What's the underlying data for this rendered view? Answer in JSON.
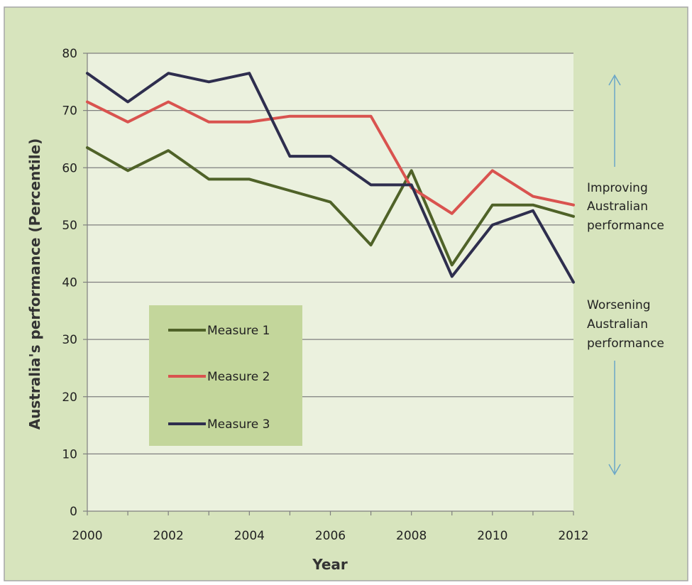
{
  "chart_data": {
    "type": "line",
    "title": "",
    "xlabel": "Year",
    "ylabel": "Australia's performance (Percentile)",
    "x": [
      2000,
      2001,
      2002,
      2003,
      2004,
      2005,
      2006,
      2007,
      2008,
      2009,
      2010,
      2011,
      2012
    ],
    "x_tick_labels": [
      "2000",
      "2002",
      "2004",
      "2006",
      "2008",
      "2010",
      "2012"
    ],
    "y_tick_labels": [
      "0",
      "10",
      "20",
      "30",
      "40",
      "50",
      "60",
      "70",
      "80"
    ],
    "xlim": [
      2000,
      2012
    ],
    "ylim": [
      0,
      80
    ],
    "grid": "horizontal",
    "legend_position": "bottom-left inside plot",
    "series": [
      {
        "name": "Measure 1",
        "color": "#4f6228",
        "values": [
          63.5,
          59.5,
          63,
          58,
          58,
          56,
          54,
          46.5,
          59.5,
          43,
          53.5,
          53.5,
          51.5
        ]
      },
      {
        "name": "Measure 2",
        "color": "#d9534f",
        "values": [
          71.5,
          68,
          71.5,
          68,
          68,
          69,
          69,
          69,
          56.5,
          52,
          59.5,
          55,
          53.5
        ]
      },
      {
        "name": "Measure 3",
        "color": "#2e2e4e",
        "values": [
          76.5,
          71.5,
          76.5,
          75,
          76.5,
          62,
          62,
          57,
          57,
          41,
          50,
          52.5,
          40
        ]
      }
    ],
    "annotations": {
      "up_text": [
        "Improving",
        "Australian",
        "performance"
      ],
      "down_text": [
        "Worsening",
        "Australian",
        "performance"
      ]
    },
    "colors": {
      "frame_background": "#d7e4bd",
      "plot_background": "#ebf1de",
      "legend_background": "#c3d69b",
      "arrow": "#6aa6c8",
      "gridline": "#7f7f7f"
    }
  }
}
